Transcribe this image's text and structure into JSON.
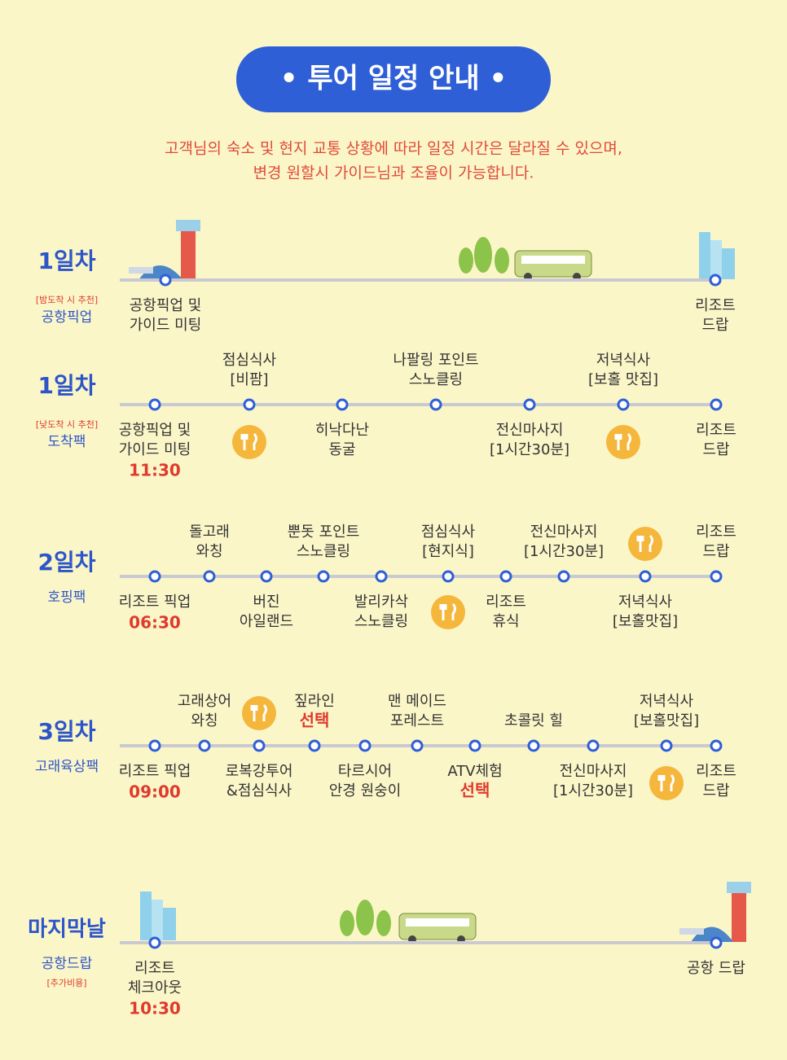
{
  "header": {
    "title": "• 투어 일정 안내 •",
    "notice": [
      "고객님의 숙소 및 현지 교통 상황에 따라 일정 시간은 달라질 수 있으며,",
      "변경 원할시 가이드님과 조율이 가능합니다."
    ]
  },
  "days": [
    {
      "title": "1일차",
      "tag": "[밤도착 시 추천]",
      "name": "공항픽업",
      "stops": [
        {
          "lines": [
            "공항픽업 및",
            "가이드 미팅"
          ]
        },
        {
          "lines": [
            "리조트",
            "드랍"
          ]
        }
      ]
    },
    {
      "title": "1일차",
      "tag": "[낮도착 시 추천]",
      "name": "도착팩",
      "stops": [
        {
          "lines": [
            "공항픽업 및",
            "가이드 미팅"
          ],
          "time": "11:30"
        },
        {
          "lines": [
            "점심식사",
            "[비팜]"
          ]
        },
        {
          "lines": [
            "히낙다난",
            "동굴"
          ]
        },
        {
          "lines": [
            "나팔링 포인트",
            "스노클링"
          ]
        },
        {
          "lines": [
            "전신마사지",
            "[1시간30분]"
          ]
        },
        {
          "lines": [
            "저녁식사",
            "[보홀 맛집]"
          ]
        },
        {
          "lines": [
            "리조트",
            "드랍"
          ]
        }
      ]
    },
    {
      "title": "2일차",
      "name": "호핑팩",
      "stops": [
        {
          "lines": [
            "리조트 픽업"
          ],
          "time": "06:30"
        },
        {
          "lines": [
            "돌고래",
            "와칭"
          ]
        },
        {
          "lines": [
            "버진",
            "아일랜드"
          ]
        },
        {
          "lines": [
            "뿐돗 포인트",
            "스노클링"
          ]
        },
        {
          "lines": [
            "발리카삭",
            "스노클링"
          ]
        },
        {
          "lines": [
            "점심식사",
            "[현지식]"
          ]
        },
        {
          "lines": [
            "리조트",
            "휴식"
          ]
        },
        {
          "lines": [
            "전신마사지",
            "[1시간30분]"
          ]
        },
        {
          "lines": [
            "저녁식사",
            "[보홀맛집]"
          ]
        },
        {
          "lines": [
            "리조트",
            "드랍"
          ]
        }
      ]
    },
    {
      "title": "3일차",
      "name": "고래육상팩",
      "stops": [
        {
          "lines": [
            "리조트 픽업"
          ],
          "time": "09:00"
        },
        {
          "lines": [
            "고래상어",
            "와칭"
          ]
        },
        {
          "lines": [
            "로복강투어",
            "&점심식사"
          ]
        },
        {
          "lines": [
            "짚라인"
          ],
          "note": "선택"
        },
        {
          "lines": [
            "타르시어",
            "안경 원숭이"
          ]
        },
        {
          "lines": [
            "맨 메이드",
            "포레스트"
          ]
        },
        {
          "lines": [
            "ATV체험"
          ],
          "note": "선택"
        },
        {
          "lines": [
            "초콜릿 힐"
          ]
        },
        {
          "lines": [
            "전신마사지",
            "[1시간30분]"
          ]
        },
        {
          "lines": [
            "저녁식사",
            "[보홀맛집]"
          ]
        },
        {
          "lines": [
            "리조트",
            "드랍"
          ]
        }
      ]
    },
    {
      "title": "마지막날",
      "name": "공항드랍",
      "tag": "[추가비용]",
      "stops": [
        {
          "lines": [
            "리조트",
            "체크아웃"
          ],
          "time": "10:30"
        },
        {
          "lines": [
            "공항 드랍"
          ]
        }
      ]
    }
  ]
}
